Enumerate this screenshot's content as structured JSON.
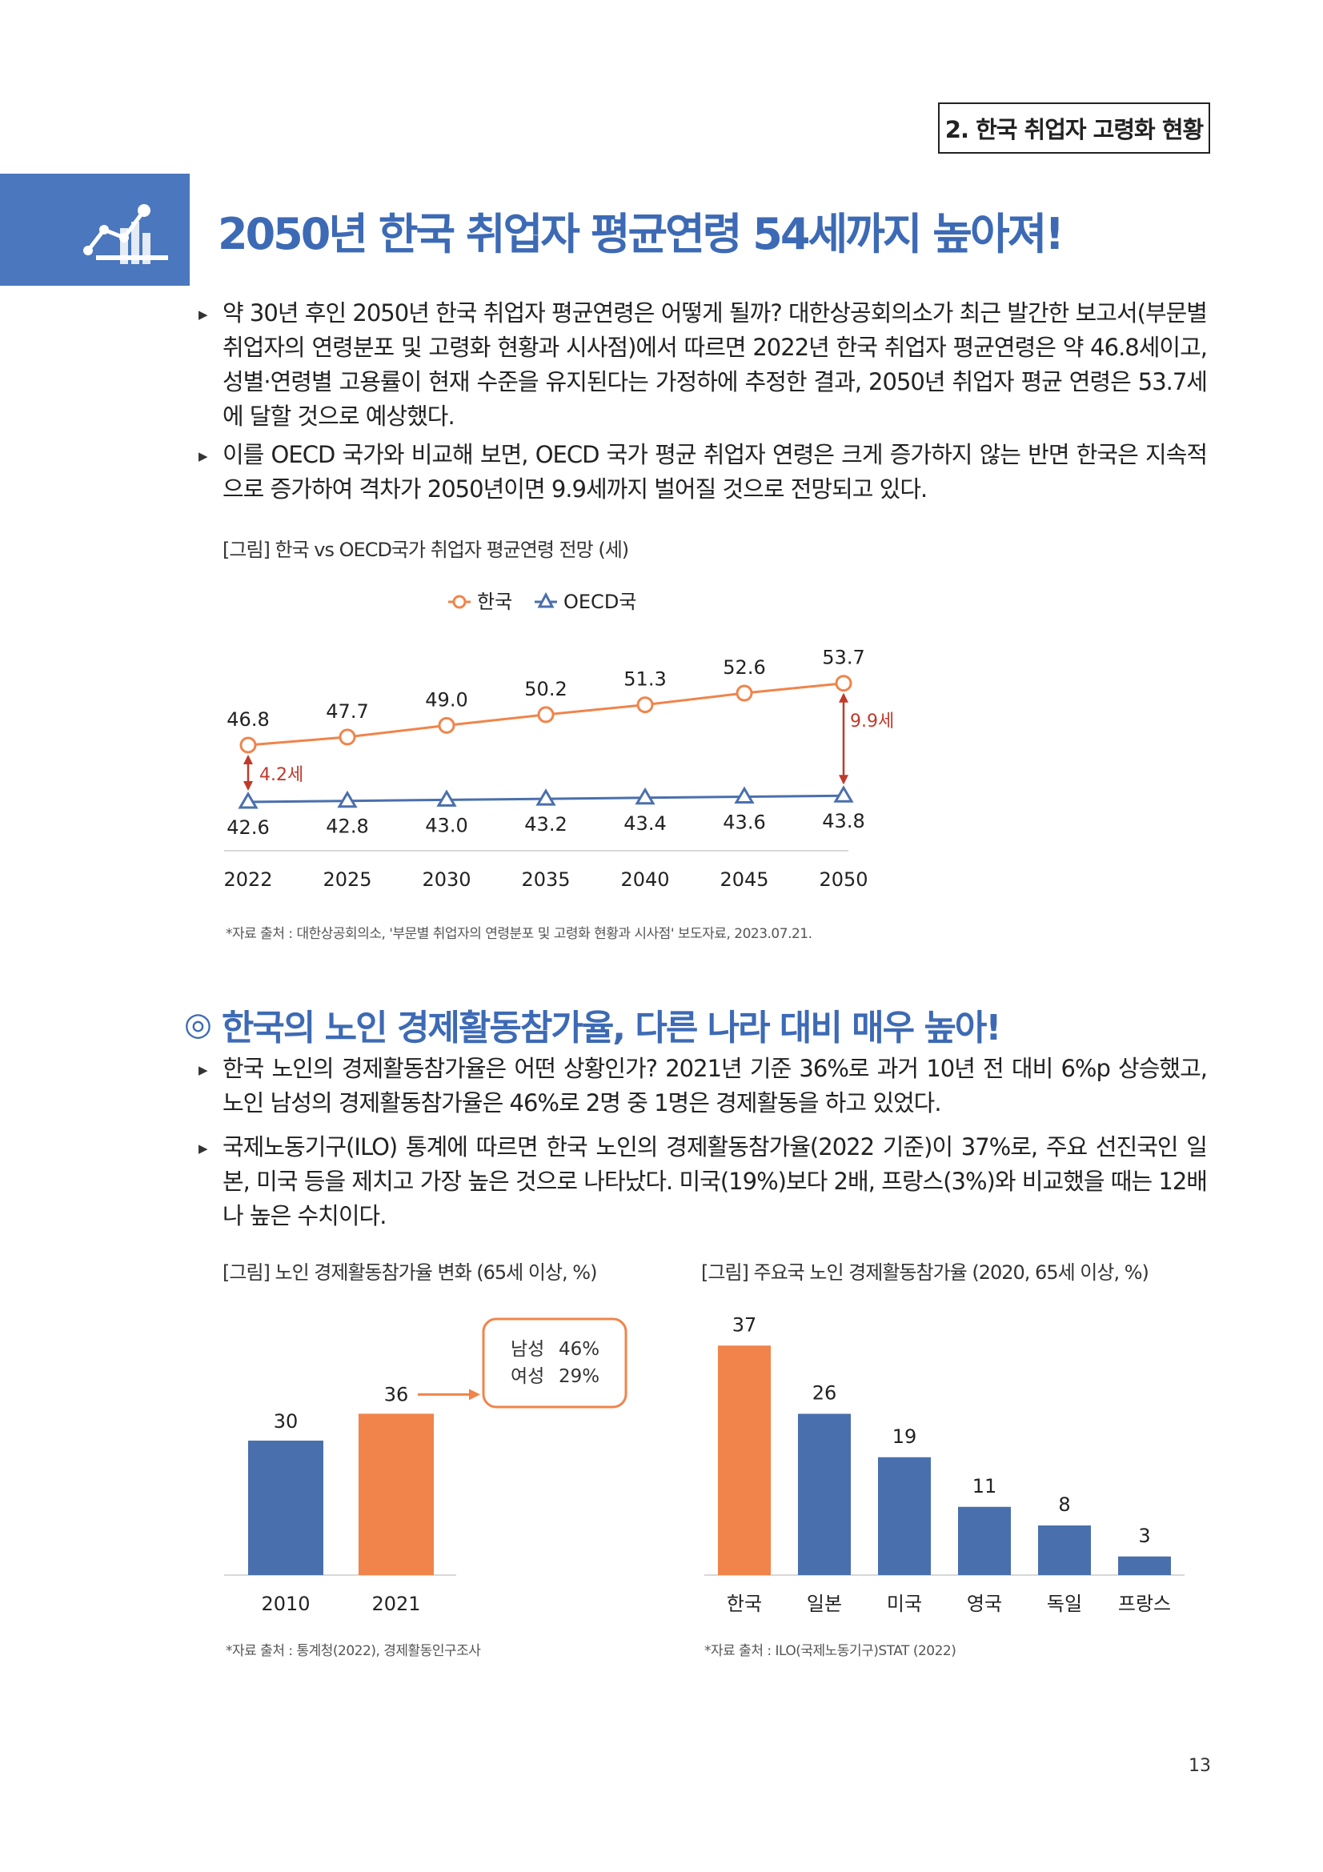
{
  "header": {
    "section_tag": "2. 한국 취업자 고령화 현황"
  },
  "section1": {
    "title": "2050년 한국 취업자 평균연령 54세까지 높아져!",
    "paragraphs": [
      "약 30년 후인 2050년 한국 취업자 평균연령은 어떻게 될까? 대한상공회의소가 최근 발간한 보고서(부문별 취업자의 연령분포 및 고령화 현황과 시사점)에서 따르면 2022년 한국 취업자 평균연령은 약 46.8세이고, 성별·연령별 고용률이 현재 수준을 유지된다는 가정하에 추정한 결과, 2050년 취업자 평균 연령은 53.7세에 달할 것으로 예상했다.",
      "이를 OECD 국가와 비교해 보면, OECD 국가 평균 취업자 연령은 크게 증가하지 않는 반면 한국은 지속적으로 증가하여 격차가 2050년이면 9.9세까지 벌어질 것으로 전망되고 있다."
    ],
    "figure_caption": "[그림] 한국 vs OECD국가 취업자 평균연령 전망 (세)",
    "source": "*자료 출처 : 대한상공회의소, '부문별 취업자의 연령분포 및 고령화 현황과 시사점' 보도자료, 2023.07.21."
  },
  "section2": {
    "title": "한국의 노인 경제활동참가율, 다른 나라 대비 매우 높아!",
    "title_symbol": "◎",
    "paragraphs": [
      "한국 노인의 경제활동참가율은 어떤 상황인가? 2021년 기준 36%로 과거 10년 전 대비 6%p 상승했고, 노인 남성의 경제활동참가율은 46%로 2명 중 1명은 경제활동을 하고 있었다.",
      "국제노동기구(ILO) 통계에 따르면 한국 노인의 경제활동참가율(2022 기준)이 37%로, 주요 선진국인 일본, 미국 등을 제치고 가장 높은 것으로 나타났다. 미국(19%)보다 2배, 프랑스(3%)와 비교했을 때는 12배나 높은 수치이다."
    ],
    "figure1_caption": "[그림] 노인 경제활동참가율 변화 (65세 이상, %)",
    "figure1_source": "*자료 출처 : 통계청(2022), 경제활동인구조사",
    "figure2_caption": "[그림] 주요국 노인 경제활동참가율 (2020, 65세 이상, %)",
    "figure2_source": "*자료 출처 : ILO(국제노동기구)STAT (2022)"
  },
  "page_number": "13",
  "colors": {
    "blue": "#4a6fad",
    "orange": "#f0844a",
    "title_blue": "#3d6ab5",
    "gap_red": "#c0392b"
  },
  "chart_data": [
    {
      "type": "line",
      "x": [
        "2022",
        "2025",
        "2030",
        "2035",
        "2040",
        "2045",
        "2050"
      ],
      "series": [
        {
          "name": "한국",
          "values": [
            46.8,
            47.7,
            49.0,
            50.2,
            51.3,
            52.6,
            53.7
          ],
          "color": "#f0844a",
          "marker": "circle"
        },
        {
          "name": "OECD국",
          "values": [
            42.6,
            42.8,
            43.0,
            43.2,
            43.4,
            43.6,
            43.8
          ],
          "color": "#4a6fad",
          "marker": "triangle"
        }
      ],
      "annotations": [
        {
          "x": "2022",
          "text": "4.2세"
        },
        {
          "x": "2050",
          "text": "9.9세"
        }
      ],
      "legend": "top-center",
      "grid": false
    },
    {
      "type": "bar",
      "categories": [
        "2010",
        "2021"
      ],
      "values": [
        30,
        36
      ],
      "colors": [
        "#4a6fad",
        "#f0844a"
      ],
      "callout": {
        "lines": [
          {
            "label": "남성",
            "value": "46%"
          },
          {
            "label": "여성",
            "value": "29%"
          }
        ]
      },
      "grid": false
    },
    {
      "type": "bar",
      "categories": [
        "한국",
        "일본",
        "미국",
        "영국",
        "독일",
        "프랑스"
      ],
      "values": [
        37,
        26,
        19,
        11,
        8,
        3
      ],
      "colors": [
        "#f0844a",
        "#4a6fad",
        "#4a6fad",
        "#4a6fad",
        "#4a6fad",
        "#4a6fad"
      ],
      "grid": false
    }
  ]
}
